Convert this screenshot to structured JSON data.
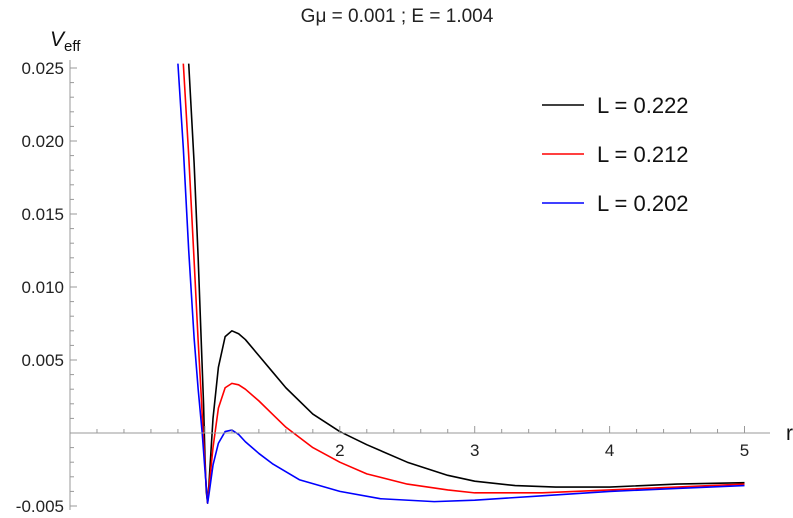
{
  "chart_data": {
    "type": "line",
    "title": "Gμ = 0.001 ; E = 1.004",
    "xlabel": "r",
    "ylabel": "V",
    "ylabel_sub": "eff",
    "xlim": [
      0,
      5.1
    ],
    "ylim": [
      -0.005,
      0.025
    ],
    "x_axis_at_y": 0,
    "y_axis_at_x": 0,
    "grid": false,
    "legend_position": "top-right",
    "x_ticks": [
      {
        "value": 2,
        "label": "2"
      },
      {
        "value": 3,
        "label": "3"
      },
      {
        "value": 4,
        "label": "4"
      },
      {
        "value": 5,
        "label": "5"
      }
    ],
    "y_ticks": [
      {
        "value": 0.025,
        "label": "0.025"
      },
      {
        "value": 0.02,
        "label": "0.020"
      },
      {
        "value": 0.015,
        "label": "0.015"
      },
      {
        "value": 0.01,
        "label": "0.010"
      },
      {
        "value": 0.005,
        "label": "0.005"
      },
      {
        "value": -0.005,
        "label": "-0.005"
      }
    ],
    "series": [
      {
        "name": "L = 0.222",
        "color": "#000000",
        "points": [
          [
            0.88,
            0.0253
          ],
          [
            0.92,
            0.0185
          ],
          [
            0.95,
            0.012
          ],
          [
            0.97,
            0.007
          ],
          [
            0.99,
            0.002
          ],
          [
            1.0,
            -0.0015
          ],
          [
            1.01,
            -0.004
          ],
          [
            1.02,
            -0.0048
          ],
          [
            1.03,
            -0.0035
          ],
          [
            1.06,
            0.001
          ],
          [
            1.1,
            0.0045
          ],
          [
            1.15,
            0.0066
          ],
          [
            1.2,
            0.007
          ],
          [
            1.25,
            0.0068
          ],
          [
            1.3,
            0.0064
          ],
          [
            1.4,
            0.0053
          ],
          [
            1.5,
            0.0042
          ],
          [
            1.6,
            0.0031
          ],
          [
            1.8,
            0.0013
          ],
          [
            2.0,
            0.0001
          ],
          [
            2.2,
            -0.0008
          ],
          [
            2.5,
            -0.002
          ],
          [
            2.8,
            -0.0029
          ],
          [
            3.0,
            -0.0033
          ],
          [
            3.3,
            -0.0036
          ],
          [
            3.6,
            -0.0037
          ],
          [
            4.0,
            -0.0037
          ],
          [
            4.5,
            -0.0035
          ],
          [
            5.0,
            -0.0034
          ]
        ]
      },
      {
        "name": "L = 0.212",
        "color": "#ff0000",
        "points": [
          [
            0.84,
            0.0253
          ],
          [
            0.88,
            0.019
          ],
          [
            0.92,
            0.0118
          ],
          [
            0.95,
            0.0063
          ],
          [
            0.97,
            0.003
          ],
          [
            0.99,
            -0.0005
          ],
          [
            1.01,
            -0.0037
          ],
          [
            1.02,
            -0.0048
          ],
          [
            1.03,
            -0.0038
          ],
          [
            1.06,
            -0.001
          ],
          [
            1.1,
            0.0017
          ],
          [
            1.15,
            0.0031
          ],
          [
            1.2,
            0.0034
          ],
          [
            1.25,
            0.0033
          ],
          [
            1.3,
            0.003
          ],
          [
            1.4,
            0.0022
          ],
          [
            1.5,
            0.0013
          ],
          [
            1.6,
            0.0004
          ],
          [
            1.8,
            -0.001
          ],
          [
            2.0,
            -0.002
          ],
          [
            2.2,
            -0.0028
          ],
          [
            2.5,
            -0.0035
          ],
          [
            2.8,
            -0.0039
          ],
          [
            3.0,
            -0.0041
          ],
          [
            3.5,
            -0.0041
          ],
          [
            4.0,
            -0.0039
          ],
          [
            4.5,
            -0.0037
          ],
          [
            5.0,
            -0.0035
          ]
        ]
      },
      {
        "name": "L = 0.202",
        "color": "#0000ff",
        "points": [
          [
            0.8,
            0.0253
          ],
          [
            0.84,
            0.0195
          ],
          [
            0.88,
            0.0125
          ],
          [
            0.92,
            0.0065
          ],
          [
            0.95,
            0.003
          ],
          [
            0.98,
            0.0
          ],
          [
            1.0,
            -0.0025
          ],
          [
            1.02,
            -0.0048
          ],
          [
            1.03,
            -0.0042
          ],
          [
            1.06,
            -0.0022
          ],
          [
            1.1,
            -0.0007
          ],
          [
            1.15,
            0.0001
          ],
          [
            1.2,
            0.0002
          ],
          [
            1.25,
            -0.0001
          ],
          [
            1.3,
            -0.0006
          ],
          [
            1.4,
            -0.0014
          ],
          [
            1.5,
            -0.0021
          ],
          [
            1.7,
            -0.0032
          ],
          [
            2.0,
            -0.004
          ],
          [
            2.3,
            -0.0045
          ],
          [
            2.7,
            -0.0047
          ],
          [
            3.0,
            -0.0046
          ],
          [
            3.5,
            -0.0043
          ],
          [
            4.0,
            -0.004
          ],
          [
            4.5,
            -0.0038
          ],
          [
            5.0,
            -0.0036
          ]
        ]
      }
    ]
  }
}
